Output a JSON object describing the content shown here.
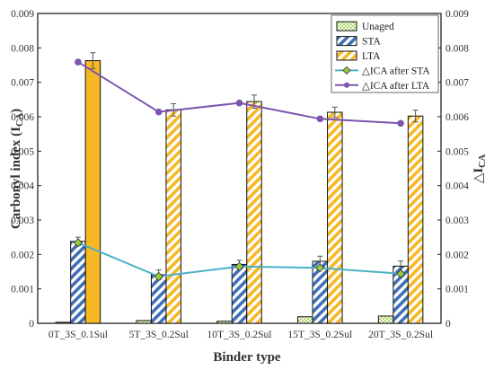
{
  "chart_data": {
    "type": "bar",
    "xlabel": "Binder type",
    "ylabel_main": "Carbonyl index (I",
    "ylabel_sub": "CA",
    "ylabel_close": ")",
    "y2label_main": "△I",
    "y2label_sub": "CA",
    "ylim": [
      0,
      0.009
    ],
    "y2lim": [
      0,
      0.009
    ],
    "yticks": [
      "0",
      "0.001",
      "0.002",
      "0.003",
      "0.004",
      "0.005",
      "0.006",
      "0.007",
      "0.008",
      "0.009"
    ],
    "y2ticks": [
      "0",
      "0.001",
      "0.002",
      "0.003",
      "0.004",
      "0.005",
      "0.006",
      "0.007",
      "0.008",
      "0.009"
    ],
    "categories": [
      "0T_3S_0.1Sul",
      "5T_3S_0.2Sul",
      "10T_3S_0.2Sul",
      "15T_3S_0.2Sul",
      "20T_3S_0.2Sul"
    ],
    "series": [
      {
        "name": "Unaged",
        "kind": "bar",
        "values": [
          3e-05,
          8e-05,
          6e-05,
          0.00019,
          0.00021
        ],
        "errors": [
          0,
          0,
          0,
          0,
          0
        ],
        "fill": "#c4e38c",
        "pattern": "checker-green"
      },
      {
        "name": "STA",
        "kind": "bar",
        "values": [
          0.00238,
          0.00141,
          0.00171,
          0.0018,
          0.00166
        ],
        "errors": [
          0.00012,
          0.00014,
          0.00012,
          0.00015,
          0.00015
        ],
        "fill": "#3f6fb5",
        "pattern": "diag-blue"
      },
      {
        "name": "LTA",
        "kind": "bar",
        "values": [
          0.00763,
          0.0062,
          0.00644,
          0.00613,
          0.00602
        ],
        "errors": [
          0.00023,
          0.00018,
          0.00019,
          0.00015,
          0.00017
        ],
        "fill": "#f6b824",
        "pattern": "diag-orange-first-solid"
      },
      {
        "name": "△ICA after STA",
        "kind": "line",
        "axis": "secondary",
        "values": [
          0.00234,
          0.00136,
          0.00165,
          0.00161,
          0.00144
        ],
        "color": "#4ab1c7",
        "marker_color": "#9acb3c"
      },
      {
        "name": "△ICA after LTA",
        "kind": "line",
        "axis": "secondary",
        "values": [
          0.00759,
          0.00614,
          0.0064,
          0.00594,
          0.00581
        ],
        "color": "#7b55ae",
        "marker_color": "#7b55ae"
      }
    ],
    "legend_position": "top-right",
    "grid": false
  }
}
